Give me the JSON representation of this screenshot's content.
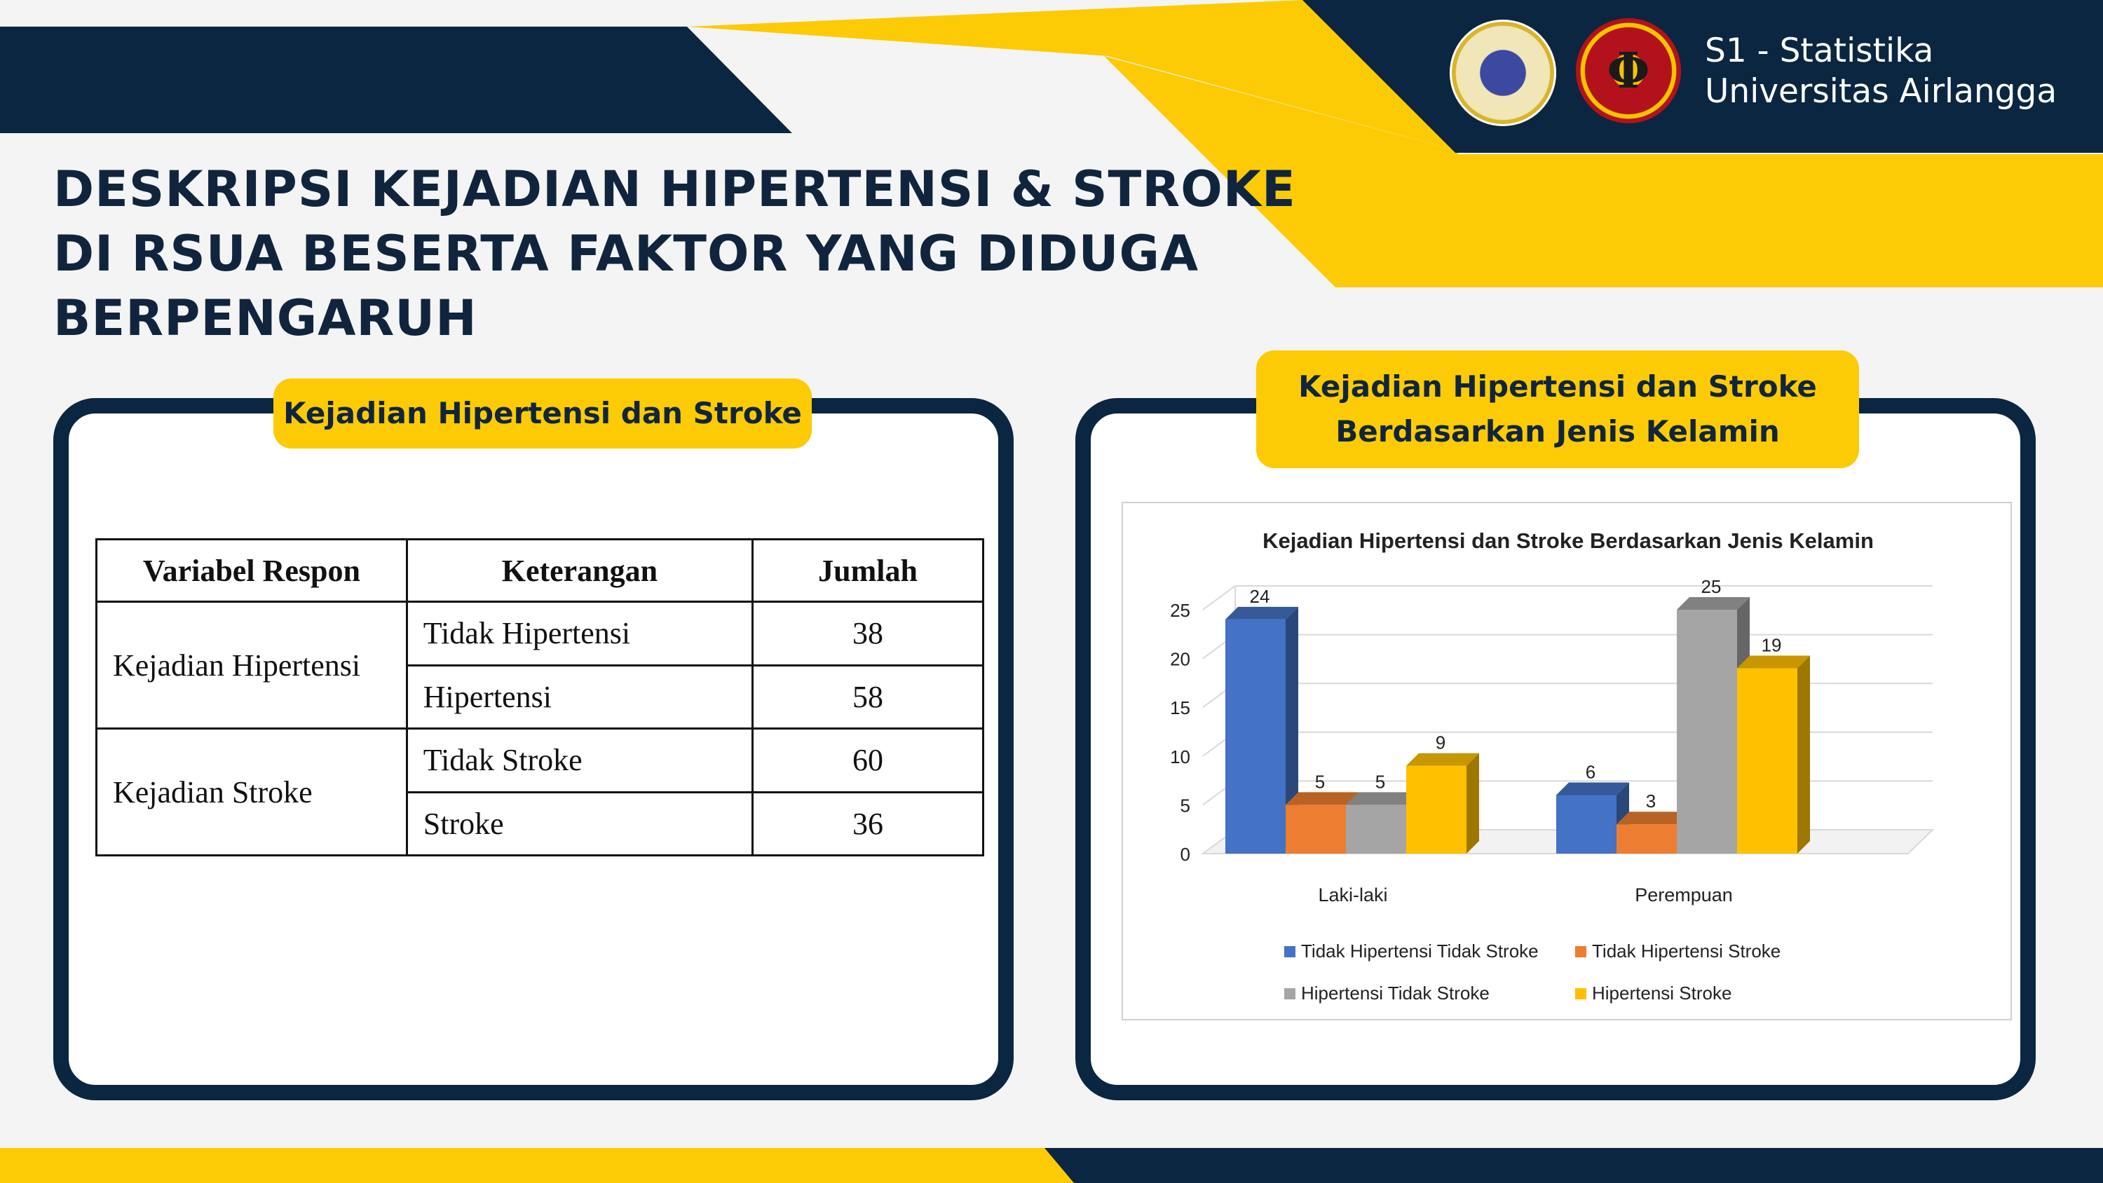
{
  "header": {
    "program": "S1 - Statistika",
    "university": "Universitas Airlangga",
    "title": "DESKRIPSI KEJADIAN HIPERTENSI & STROKE DI RSUA BESERTA FAKTOR YANG DIDUGA BERPENGARUH"
  },
  "colors": {
    "navy": "#0b2641",
    "yellow": "#fccb06",
    "white": "#ffffff"
  },
  "left_panel": {
    "heading": "Kejadian Hipertensi dan Stroke",
    "table": {
      "headers": [
        "Variabel Respon",
        "Keterangan",
        "Jumlah"
      ],
      "groups": [
        {
          "variable": "Kejadian Hipertensi",
          "rows": [
            {
              "label": "Tidak Hipertensi",
              "value": "38"
            },
            {
              "label": "Hipertensi",
              "value": "58"
            }
          ]
        },
        {
          "variable": "Kejadian Stroke",
          "rows": [
            {
              "label": "Tidak Stroke",
              "value": "60"
            },
            {
              "label": "Stroke",
              "value": "36"
            }
          ]
        }
      ]
    }
  },
  "right_panel": {
    "heading_line1": "Kejadian Hipertensi dan Stroke",
    "heading_line2": "Berdasarkan Jenis Kelamin"
  },
  "chart_data": {
    "type": "bar",
    "style": "3d-clustered-column",
    "title": "Kejadian Hipertensi dan Stroke Berdasarkan Jenis Kelamin",
    "categories": [
      "Laki-laki",
      "Perempuan"
    ],
    "series": [
      {
        "name": "Tidak  Hipertensi Tidak Stroke",
        "values": [
          24,
          6
        ],
        "color": "#4472c4"
      },
      {
        "name": "Tidak  Hipertensi Stroke",
        "values": [
          5,
          3
        ],
        "color": "#ed7d31"
      },
      {
        "name": "Hipertensi Tidak Stroke",
        "values": [
          5,
          25
        ],
        "color": "#a5a5a5"
      },
      {
        "name": "Hipertensi Stroke",
        "values": [
          9,
          19
        ],
        "color": "#ffc000"
      }
    ],
    "yticks": [
      0,
      5,
      10,
      15,
      20,
      25
    ],
    "ylim": [
      0,
      25
    ],
    "grid": true,
    "legend": "bottom"
  }
}
